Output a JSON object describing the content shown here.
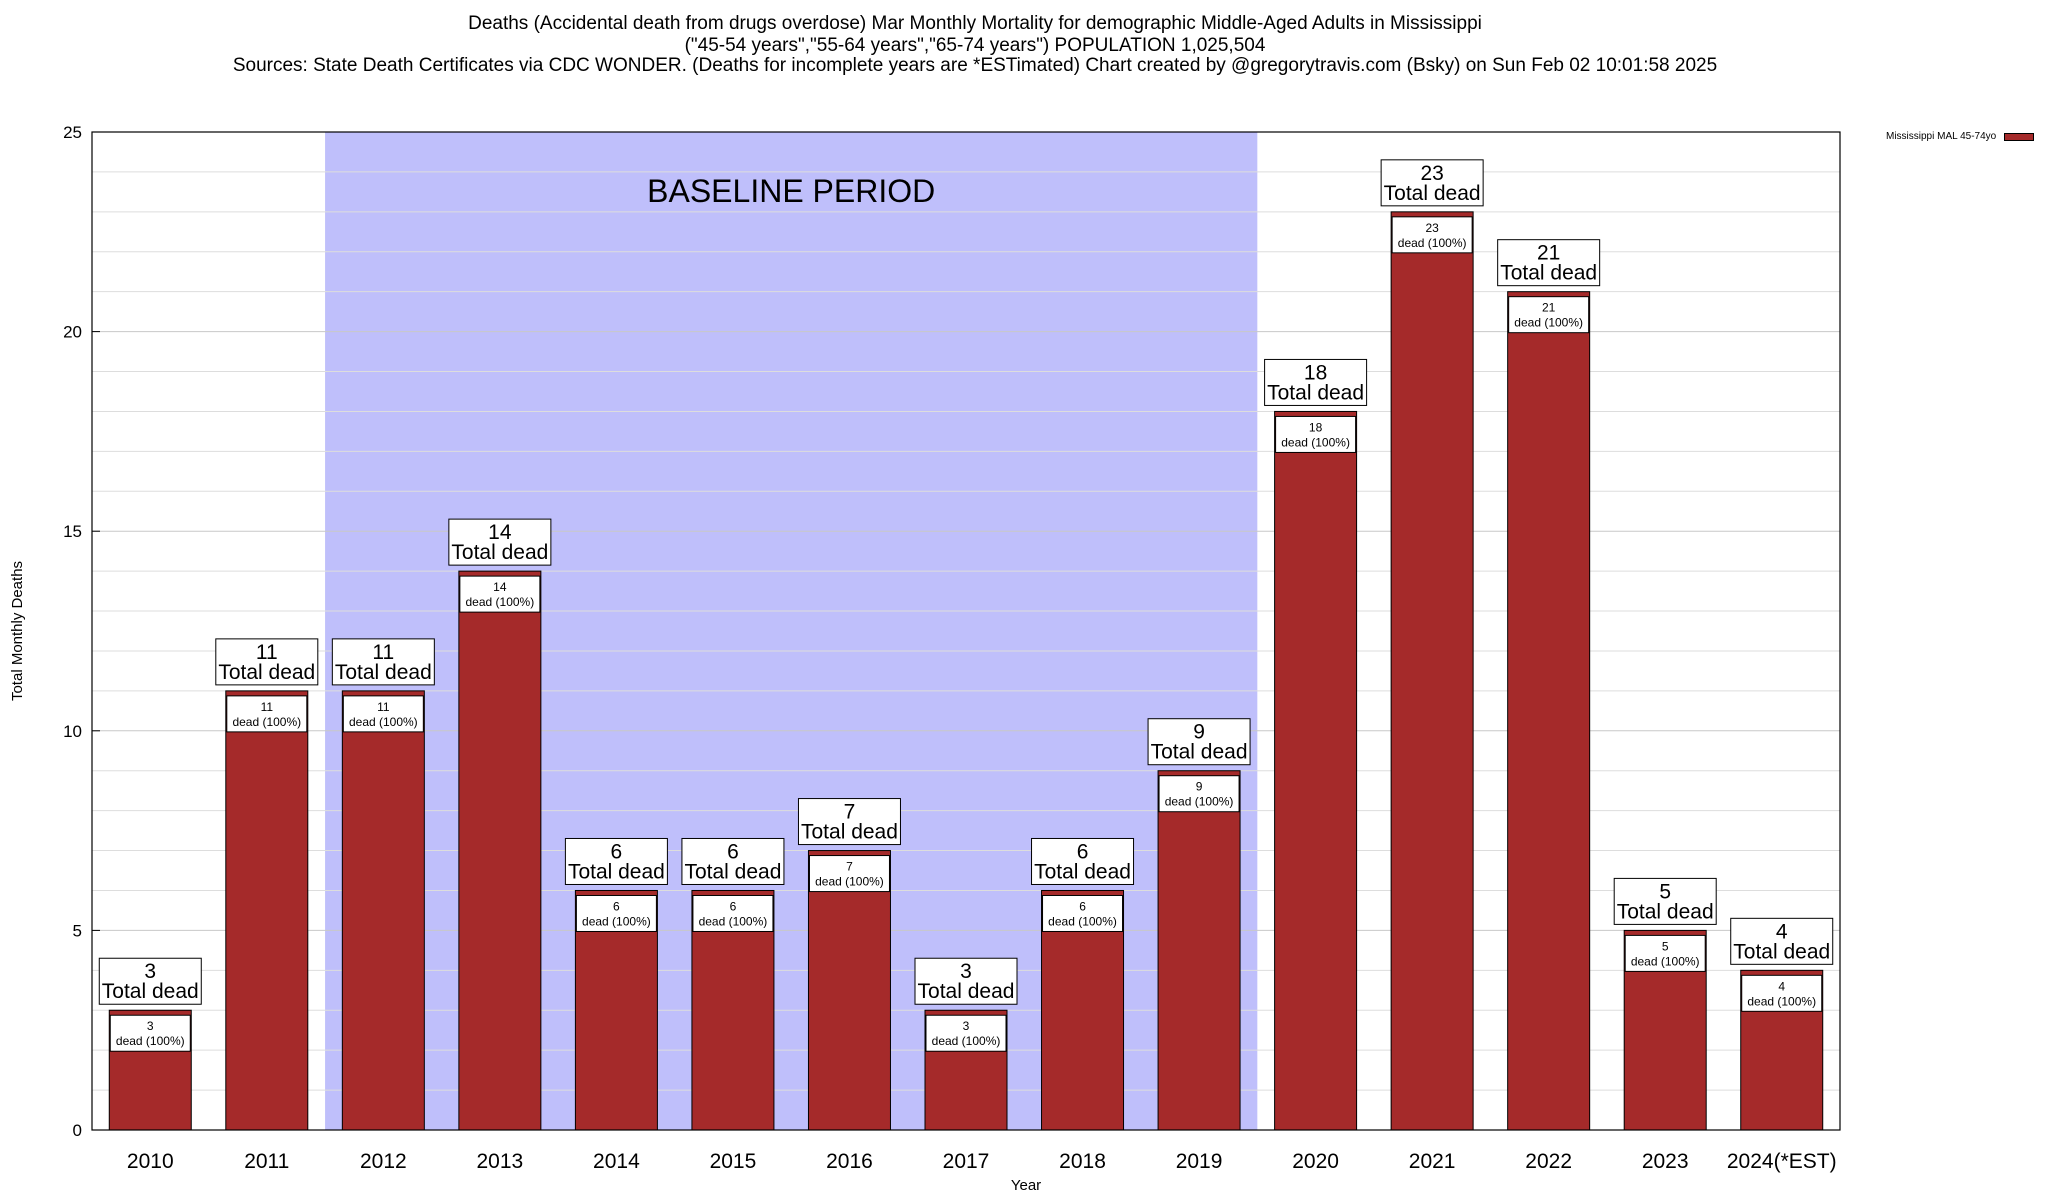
{
  "chart_data": {
    "type": "bar",
    "title_lines": [
      "Deaths (Accidental death from drugs overdose) Mar Monthly Mortality for demographic Middle-Aged Adults in Mississippi",
      "(\"45-54 years\",\"55-64 years\",\"65-74 years\") POPULATION 1,025,504",
      "Sources: State Death Certificates via CDC WONDER. (Deaths for incomplete years are *ESTimated)                Chart created by @gregorytravis.com (Bsky) on Sun Feb 02 10:01:58 2025"
    ],
    "xlabel": "Year",
    "ylabel": "Total Monthly Deaths",
    "ylim": [
      0,
      25
    ],
    "yticks": [
      0,
      5,
      10,
      15,
      20,
      25
    ],
    "categories": [
      "2010",
      "2011",
      "2012",
      "2013",
      "2014",
      "2015",
      "2016",
      "2017",
      "2018",
      "2019",
      "2020",
      "2021",
      "2022",
      "2023",
      "2024(*EST)"
    ],
    "series": [
      {
        "name": "Mississippi MAL 45-74yo",
        "color": "#a52a2a",
        "values": [
          3,
          11,
          11,
          14,
          6,
          6,
          7,
          3,
          6,
          9,
          18,
          23,
          21,
          5,
          4
        ]
      }
    ],
    "total_label_text": "Total dead",
    "inner_label_text": "dead (100%)",
    "baseline": {
      "label": "BASELINE PERIOD",
      "start": "2012",
      "end": "2019",
      "color": "#bfbffb"
    },
    "legend_position": "top-right",
    "grid": true
  }
}
